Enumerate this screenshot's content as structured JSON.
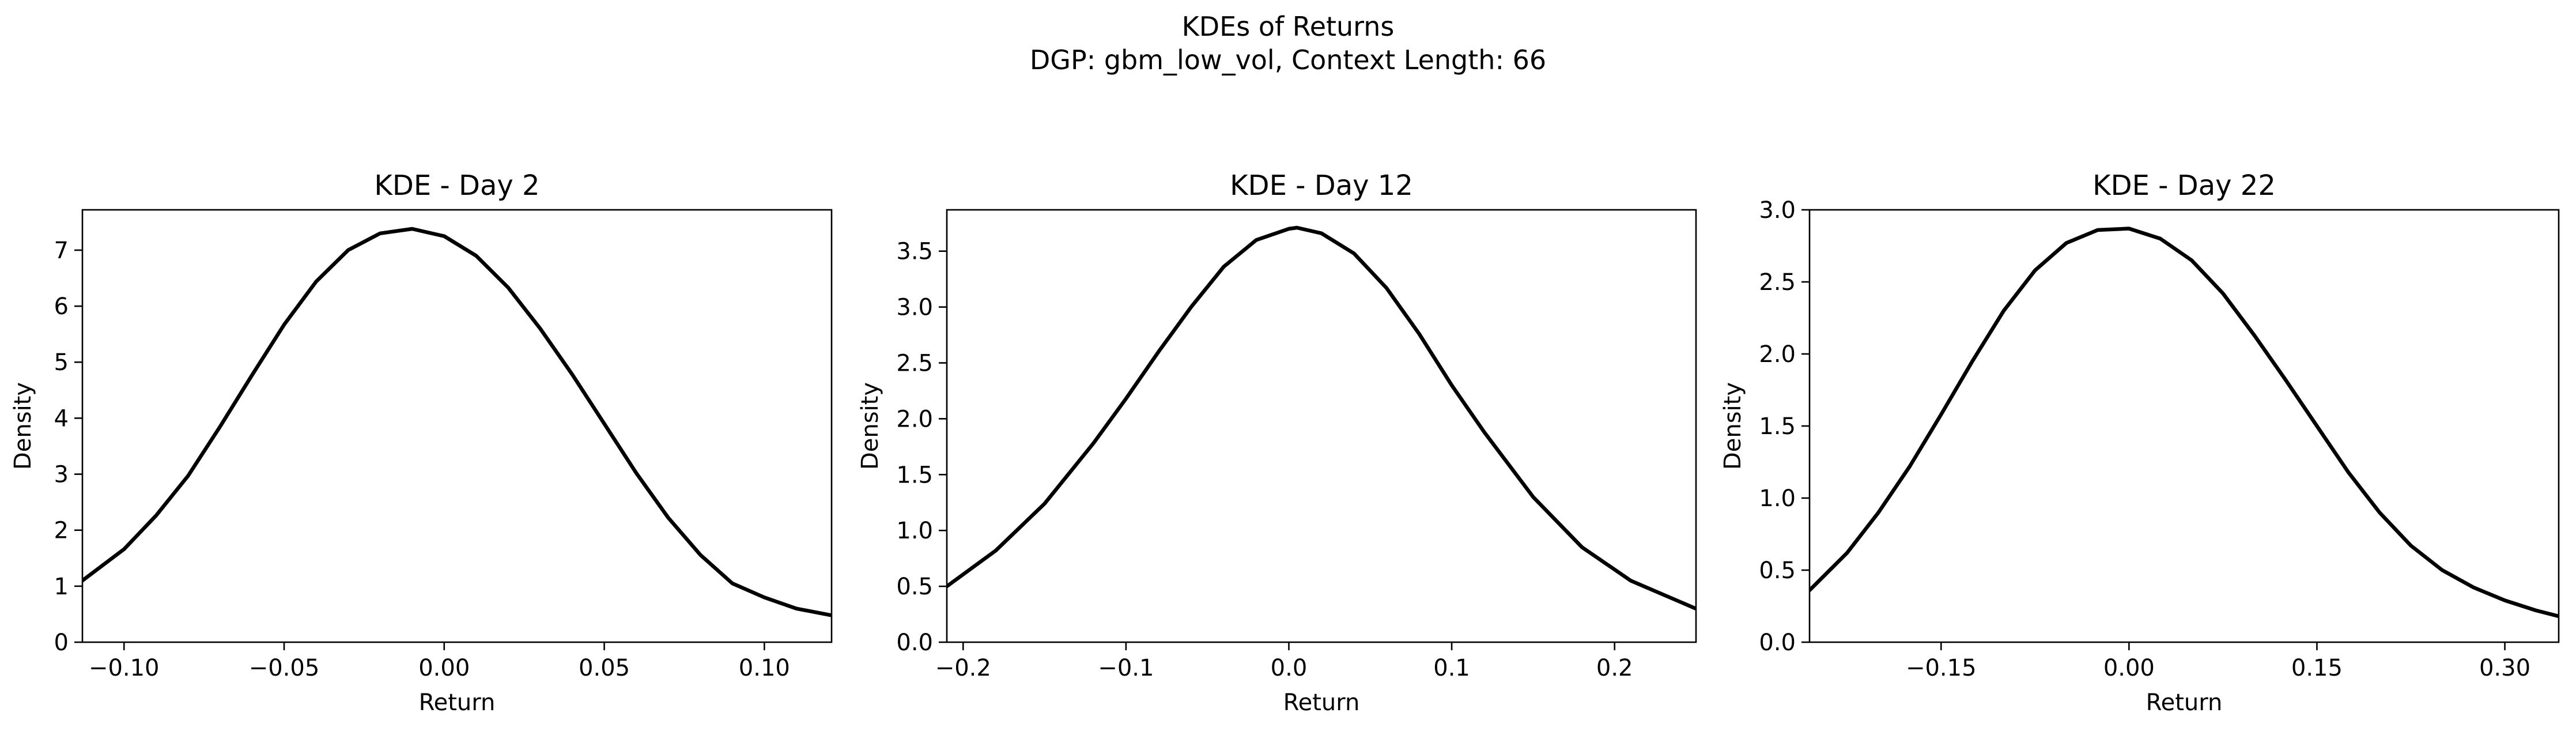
{
  "figure": {
    "title_line1": "KDEs of Returns",
    "title_line2": "DGP: gbm_low_vol, Context Length: 66"
  },
  "chart_data": [
    {
      "type": "line",
      "title": "KDE - Day 2",
      "xlabel": "Return",
      "ylabel": "Density",
      "xlim": [
        -0.113,
        0.121
      ],
      "ylim": [
        0,
        7.72
      ],
      "xticks": [
        -0.1,
        -0.05,
        0.0,
        0.05,
        0.1
      ],
      "xtick_labels": [
        "−0.10",
        "−0.05",
        "0.00",
        "0.05",
        "0.10"
      ],
      "yticks": [
        0,
        1,
        2,
        3,
        4,
        5,
        6,
        7
      ],
      "ytick_labels": [
        "0",
        "1",
        "2",
        "3",
        "4",
        "5",
        "6",
        "7"
      ],
      "grid": false,
      "series": [
        {
          "color": "#000000",
          "x": [
            -0.113,
            -0.1,
            -0.09,
            -0.08,
            -0.07,
            -0.06,
            -0.05,
            -0.04,
            -0.03,
            -0.02,
            -0.01,
            0.0,
            0.01,
            0.02,
            0.03,
            0.04,
            0.05,
            0.06,
            0.07,
            0.08,
            0.09,
            0.1,
            0.11,
            0.121
          ],
          "y": [
            1.1,
            1.66,
            2.26,
            2.97,
            3.85,
            4.77,
            5.67,
            6.44,
            7.0,
            7.3,
            7.38,
            7.25,
            6.9,
            6.33,
            5.6,
            4.78,
            3.9,
            3.02,
            2.22,
            1.56,
            1.05,
            0.8,
            0.6,
            0.48
          ]
        }
      ]
    },
    {
      "type": "line",
      "title": "KDE - Day 12",
      "xlabel": "Return",
      "ylabel": "Density",
      "xlim": [
        -0.21,
        0.25
      ],
      "ylim": [
        0,
        3.87
      ],
      "xticks": [
        -0.2,
        -0.1,
        0.0,
        0.1,
        0.2
      ],
      "xtick_labels": [
        "−0.2",
        "−0.1",
        "0.0",
        "0.1",
        "0.2"
      ],
      "yticks": [
        0,
        0.5,
        1.0,
        1.5,
        2.0,
        2.5,
        3.0,
        3.5
      ],
      "ytick_labels": [
        "0.0",
        "0.5",
        "1.0",
        "1.5",
        "2.0",
        "2.5",
        "3.0",
        "3.5"
      ],
      "grid": false,
      "series": [
        {
          "color": "#000000",
          "x": [
            -0.21,
            -0.18,
            -0.15,
            -0.12,
            -0.1,
            -0.08,
            -0.06,
            -0.04,
            -0.02,
            0.0,
            0.005,
            0.02,
            0.04,
            0.06,
            0.08,
            0.1,
            0.12,
            0.15,
            0.18,
            0.21,
            0.25
          ],
          "y": [
            0.5,
            0.82,
            1.24,
            1.78,
            2.18,
            2.6,
            3.0,
            3.36,
            3.6,
            3.7,
            3.71,
            3.66,
            3.48,
            3.17,
            2.76,
            2.3,
            1.88,
            1.3,
            0.85,
            0.55,
            0.3
          ]
        }
      ]
    },
    {
      "type": "line",
      "title": "KDE - Day 22",
      "xlabel": "Return",
      "ylabel": "Density",
      "xlim": [
        -0.255,
        0.343
      ],
      "ylim": [
        0,
        3.0
      ],
      "xticks": [
        -0.15,
        0.0,
        0.15,
        0.3
      ],
      "xtick_labels": [
        "−0.15",
        "0.00",
        "0.15",
        "0.30"
      ],
      "yticks": [
        0,
        0.5,
        1.0,
        1.5,
        2.0,
        2.5,
        3.0
      ],
      "ytick_labels": [
        "0.0",
        "0.5",
        "1.0",
        "1.5",
        "2.0",
        "2.5",
        "3.0"
      ],
      "grid": false,
      "series": [
        {
          "color": "#000000",
          "x": [
            -0.255,
            -0.225,
            -0.2,
            -0.175,
            -0.15,
            -0.125,
            -0.1,
            -0.075,
            -0.05,
            -0.025,
            0.0,
            0.025,
            0.05,
            0.075,
            0.1,
            0.125,
            0.15,
            0.175,
            0.2,
            0.225,
            0.25,
            0.275,
            0.3,
            0.325,
            0.343
          ],
          "y": [
            0.36,
            0.62,
            0.9,
            1.22,
            1.58,
            1.95,
            2.3,
            2.58,
            2.77,
            2.86,
            2.87,
            2.8,
            2.65,
            2.42,
            2.13,
            1.82,
            1.5,
            1.18,
            0.9,
            0.67,
            0.5,
            0.38,
            0.29,
            0.22,
            0.18
          ]
        }
      ]
    }
  ]
}
